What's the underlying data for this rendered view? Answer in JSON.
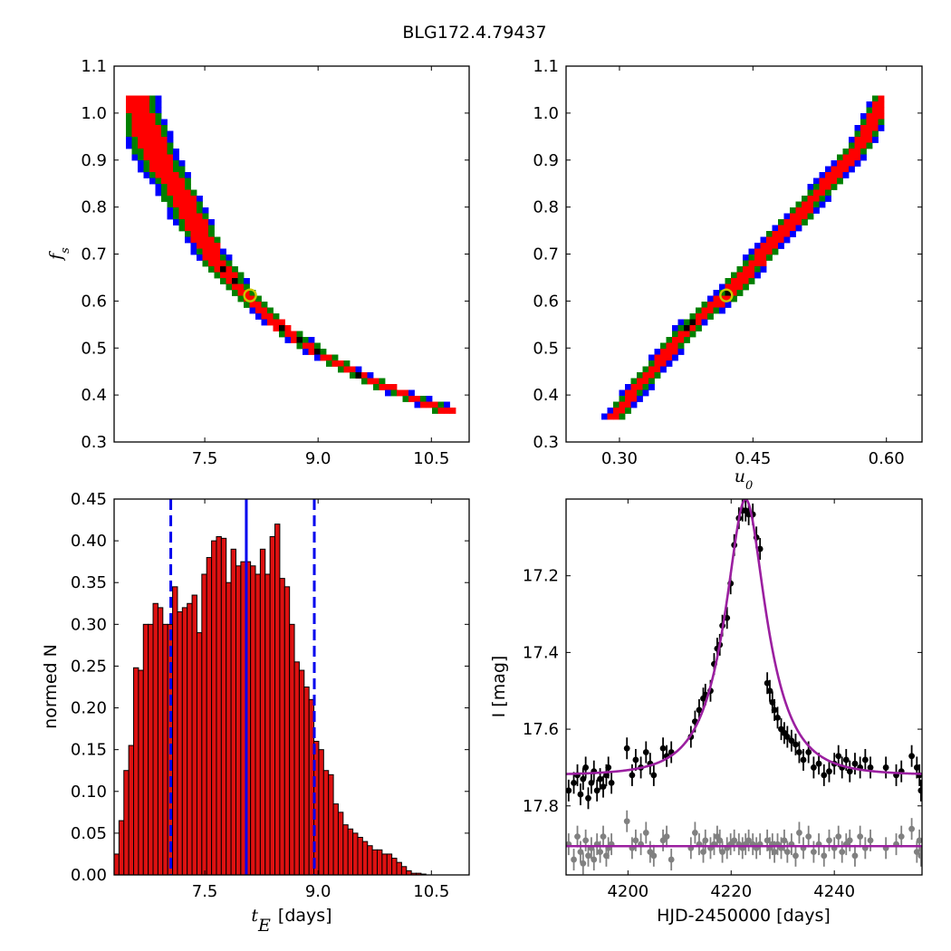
{
  "figure": {
    "title": "BLG172.4.79437"
  },
  "colors": {
    "sigma3": "#0000ff",
    "sigma2": "#008000",
    "sigma1": "#ff0000",
    "best": "#000000",
    "marker": "#c8c800",
    "hist_fill": "#dd1111",
    "line_blue": "#0000ee",
    "model": "#9b1fa0",
    "data_black": "#000000",
    "data_gray": "#808080"
  },
  "chart_data": [
    {
      "id": "tE_vs_fs",
      "type": "heatmap",
      "xlabel": "",
      "ylabel": "f_s",
      "ylabel_main": "f",
      "ylabel_sub": "s",
      "xlim": [
        6.3,
        11.0
      ],
      "ylim": [
        0.3,
        1.1
      ],
      "xticks": [
        7.5,
        9.0,
        10.5
      ],
      "xtick_labels": [
        "7.5",
        "9.0",
        "10.5"
      ],
      "yticks": [
        0.3,
        0.4,
        0.5,
        0.6,
        0.7,
        0.8,
        0.9,
        1.0,
        1.1
      ],
      "ytick_labels": [
        "0.3",
        "0.4",
        "0.5",
        "0.6",
        "0.7",
        "0.8",
        "0.9",
        "1.0",
        "1.1"
      ],
      "ridge": [
        [
          6.55,
          1.04
        ],
        [
          6.85,
          0.92
        ],
        [
          7.2,
          0.82
        ],
        [
          7.6,
          0.7
        ],
        [
          8.0,
          0.62
        ],
        [
          8.5,
          0.545
        ],
        [
          9.0,
          0.49
        ],
        [
          9.5,
          0.445
        ],
        [
          10.0,
          0.41
        ],
        [
          10.4,
          0.385
        ],
        [
          10.8,
          0.36
        ]
      ],
      "half_width_3sigma": [
        0.35,
        0.3,
        0.26,
        0.22,
        0.18,
        0.16,
        0.16,
        0.16,
        0.18,
        0.2,
        0.22
      ],
      "best_fit": [
        8.1,
        0.612
      ]
    },
    {
      "id": "u0_vs_fs",
      "type": "heatmap",
      "xlabel": "u_0",
      "xlabel_main": "u",
      "xlabel_sub": "0",
      "ylabel": "",
      "xlim": [
        0.24,
        0.64
      ],
      "ylim": [
        0.3,
        1.1
      ],
      "xticks": [
        0.3,
        0.45,
        0.6
      ],
      "xtick_labels": [
        "0.30",
        "0.45",
        "0.60"
      ],
      "yticks": [
        0.3,
        0.4,
        0.5,
        0.6,
        0.7,
        0.8,
        0.9,
        1.0,
        1.1
      ],
      "ytick_labels": [
        "0.3",
        "0.4",
        "0.5",
        "0.6",
        "0.7",
        "0.8",
        "0.9",
        "1.0",
        "1.1"
      ],
      "ridge": [
        [
          0.29,
          0.345
        ],
        [
          0.34,
          0.46
        ],
        [
          0.38,
          0.55
        ],
        [
          0.42,
          0.61
        ],
        [
          0.47,
          0.72
        ],
        [
          0.52,
          0.82
        ],
        [
          0.57,
          0.93
        ],
        [
          0.6,
          1.04
        ]
      ],
      "half_width_3sigma": [
        0.012,
        0.014,
        0.015,
        0.016,
        0.016,
        0.016,
        0.015,
        0.014
      ],
      "best_fit": [
        0.42,
        0.612
      ]
    },
    {
      "id": "tE_histogram",
      "type": "bar",
      "xlabel": "t_E [days]",
      "xlabel_main": "t",
      "xlabel_sub": "E",
      "xlabel_unit": "[days]",
      "ylabel": "normed N",
      "xlim": [
        6.3,
        11.0
      ],
      "ylim": [
        0.0,
        0.45
      ],
      "xticks": [
        7.5,
        9.0,
        10.5
      ],
      "xtick_labels": [
        "7.5",
        "9.0",
        "10.5"
      ],
      "yticks": [
        0.0,
        0.05,
        0.1,
        0.15,
        0.2,
        0.25,
        0.3,
        0.35,
        0.4,
        0.45
      ],
      "ytick_labels": [
        "0.00",
        "0.05",
        "0.10",
        "0.15",
        "0.20",
        "0.25",
        "0.30",
        "0.35",
        "0.40",
        "0.45"
      ],
      "bin_start": 6.3,
      "bin_width": 0.0645,
      "values": [
        0.025,
        0.065,
        0.125,
        0.155,
        0.248,
        0.245,
        0.3,
        0.3,
        0.325,
        0.32,
        0.3,
        0.3,
        0.345,
        0.315,
        0.32,
        0.325,
        0.335,
        0.29,
        0.36,
        0.38,
        0.4,
        0.405,
        0.403,
        0.35,
        0.39,
        0.37,
        0.375,
        0.375,
        0.37,
        0.36,
        0.39,
        0.36,
        0.405,
        0.42,
        0.355,
        0.345,
        0.3,
        0.255,
        0.245,
        0.225,
        0.21,
        0.16,
        0.15,
        0.125,
        0.12,
        0.085,
        0.075,
        0.06,
        0.055,
        0.05,
        0.045,
        0.04,
        0.035,
        0.03,
        0.03,
        0.025,
        0.025,
        0.02,
        0.015,
        0.01,
        0.005,
        0.002,
        0.002,
        0.001
      ],
      "median": 8.05,
      "lower": 7.05,
      "upper": 8.95
    },
    {
      "id": "light_curve",
      "type": "scatter",
      "xlabel": "HJD-2450000 [days]",
      "ylabel": "I [mag]",
      "xlim": [
        4188,
        4257
      ],
      "ylim": [
        17.98,
        17.0
      ],
      "xticks": [
        4200,
        4220,
        4240
      ],
      "xtick_labels": [
        "4200",
        "4220",
        "4240"
      ],
      "yticks": [
        17.2,
        17.4,
        17.6,
        17.8
      ],
      "ytick_labels": [
        "17.2",
        "17.4",
        "17.6",
        "17.8"
      ],
      "model": {
        "t0": 4222.8,
        "tE": 8.1,
        "u0": 0.42,
        "fs": 0.612,
        "baseline": 17.72
      },
      "residual_level": 17.905,
      "series": [
        {
          "role": "data",
          "points": [
            [
              4188.5,
              17.76
            ],
            [
              4189.5,
              17.74
            ],
            [
              4190.2,
              17.72
            ],
            [
              4190.8,
              17.77
            ],
            [
              4191.3,
              17.73
            ],
            [
              4191.8,
              17.7
            ],
            [
              4192.3,
              17.78
            ],
            [
              4192.9,
              17.74
            ],
            [
              4193.4,
              17.71
            ],
            [
              4194.0,
              17.76
            ],
            [
              4194.6,
              17.73
            ],
            [
              4195.2,
              17.75
            ],
            [
              4195.8,
              17.72
            ],
            [
              4196.2,
              17.7
            ],
            [
              4196.8,
              17.74
            ],
            [
              4199.8,
              17.65
            ],
            [
              4200.8,
              17.72
            ],
            [
              4201.5,
              17.68
            ],
            [
              4202.5,
              17.7
            ],
            [
              4203.5,
              17.66
            ],
            [
              4204.3,
              17.69
            ],
            [
              4205.0,
              17.72
            ],
            [
              4206.8,
              17.65
            ],
            [
              4207.5,
              17.67
            ],
            [
              4208.4,
              17.66
            ],
            [
              4212.2,
              17.62
            ],
            [
              4213.0,
              17.58
            ],
            [
              4213.8,
              17.55
            ],
            [
              4214.6,
              17.52
            ],
            [
              4215.0,
              17.51
            ],
            [
              4216.0,
              17.5
            ],
            [
              4216.7,
              17.43
            ],
            [
              4217.3,
              17.39
            ],
            [
              4217.8,
              17.38
            ],
            [
              4218.3,
              17.33
            ],
            [
              4219.2,
              17.31
            ],
            [
              4219.9,
              17.22
            ],
            [
              4220.6,
              17.12
            ],
            [
              4221.5,
              17.05
            ],
            [
              4222.2,
              17.03
            ],
            [
              4222.8,
              17.03
            ],
            [
              4223.4,
              17.04
            ],
            [
              4224.2,
              17.04
            ],
            [
              4224.9,
              17.1
            ],
            [
              4225.6,
              17.13
            ],
            [
              4227.0,
              17.48
            ],
            [
              4227.5,
              17.5
            ],
            [
              4228.0,
              17.53
            ],
            [
              4228.4,
              17.55
            ],
            [
              4229.0,
              17.57
            ],
            [
              4229.7,
              17.6
            ],
            [
              4230.3,
              17.61
            ],
            [
              4230.9,
              17.62
            ],
            [
              4231.7,
              17.63
            ],
            [
              4232.5,
              17.64
            ],
            [
              4233.2,
              17.66
            ],
            [
              4234.0,
              17.68
            ],
            [
              4235.0,
              17.66
            ],
            [
              4236.0,
              17.7
            ],
            [
              4237.0,
              17.69
            ],
            [
              4238.0,
              17.72
            ],
            [
              4239.0,
              17.71
            ],
            [
              4240.0,
              17.69
            ],
            [
              4240.8,
              17.67
            ],
            [
              4241.5,
              17.7
            ],
            [
              4242.3,
              17.68
            ],
            [
              4243.0,
              17.71
            ],
            [
              4244.0,
              17.69
            ],
            [
              4245.0,
              17.7
            ],
            [
              4246.0,
              17.68
            ],
            [
              4247.0,
              17.7
            ],
            [
              4250.0,
              17.7
            ],
            [
              4252.0,
              17.72
            ],
            [
              4253.0,
              17.71
            ],
            [
              4255.0,
              17.67
            ],
            [
              4256.0,
              17.7
            ],
            [
              4256.5,
              17.72
            ],
            [
              4256.8,
              17.76
            ]
          ]
        },
        {
          "role": "residuals",
          "points": [
            [
              4188.5,
              17.9
            ],
            [
              4189.5,
              17.94
            ],
            [
              4190.2,
              17.88
            ],
            [
              4190.8,
              17.92
            ],
            [
              4191.3,
              17.95
            ],
            [
              4191.8,
              17.89
            ],
            [
              4192.3,
              17.93
            ],
            [
              4192.9,
              17.91
            ],
            [
              4193.4,
              17.94
            ],
            [
              4194.0,
              17.9
            ],
            [
              4194.6,
              17.92
            ],
            [
              4195.2,
              17.88
            ],
            [
              4195.8,
              17.93
            ],
            [
              4196.2,
              17.91
            ],
            [
              4196.8,
              17.9
            ],
            [
              4199.8,
              17.84
            ],
            [
              4200.8,
              17.91
            ],
            [
              4201.5,
              17.89
            ],
            [
              4202.5,
              17.9
            ],
            [
              4203.5,
              17.87
            ],
            [
              4204.3,
              17.92
            ],
            [
              4205.0,
              17.93
            ],
            [
              4206.8,
              17.89
            ],
            [
              4207.5,
              17.88
            ],
            [
              4208.4,
              17.94
            ],
            [
              4212.2,
              17.91
            ],
            [
              4213.0,
              17.87
            ],
            [
              4213.8,
              17.9
            ],
            [
              4214.6,
              17.92
            ],
            [
              4215.0,
              17.89
            ],
            [
              4216.0,
              17.91
            ],
            [
              4216.7,
              17.9
            ],
            [
              4217.3,
              17.88
            ],
            [
              4217.8,
              17.89
            ],
            [
              4218.3,
              17.92
            ],
            [
              4219.2,
              17.91
            ],
            [
              4219.9,
              17.9
            ],
            [
              4220.6,
              17.89
            ],
            [
              4221.5,
              17.9
            ],
            [
              4222.2,
              17.91
            ],
            [
              4222.8,
              17.9
            ],
            [
              4223.4,
              17.89
            ],
            [
              4224.2,
              17.9
            ],
            [
              4224.9,
              17.91
            ],
            [
              4225.6,
              17.9
            ],
            [
              4227.0,
              17.89
            ],
            [
              4227.5,
              17.91
            ],
            [
              4228.0,
              17.9
            ],
            [
              4228.4,
              17.92
            ],
            [
              4229.0,
              17.9
            ],
            [
              4229.7,
              17.91
            ],
            [
              4230.3,
              17.89
            ],
            [
              4230.9,
              17.92
            ],
            [
              4231.7,
              17.9
            ],
            [
              4232.5,
              17.93
            ],
            [
              4233.2,
              17.87
            ],
            [
              4234.0,
              17.91
            ],
            [
              4235.0,
              17.88
            ],
            [
              4236.0,
              17.92
            ],
            [
              4237.0,
              17.9
            ],
            [
              4238.0,
              17.93
            ],
            [
              4239.0,
              17.89
            ],
            [
              4240.0,
              17.91
            ],
            [
              4240.8,
              17.88
            ],
            [
              4241.5,
              17.92
            ],
            [
              4242.3,
              17.9
            ],
            [
              4243.0,
              17.89
            ],
            [
              4244.0,
              17.93
            ],
            [
              4245.0,
              17.88
            ],
            [
              4246.0,
              17.91
            ],
            [
              4247.0,
              17.89
            ],
            [
              4250.0,
              17.91
            ],
            [
              4252.0,
              17.9
            ],
            [
              4253.0,
              17.88
            ],
            [
              4255.0,
              17.86
            ],
            [
              4256.0,
              17.92
            ],
            [
              4256.5,
              17.89
            ],
            [
              4256.8,
              17.93
            ]
          ]
        }
      ]
    }
  ]
}
